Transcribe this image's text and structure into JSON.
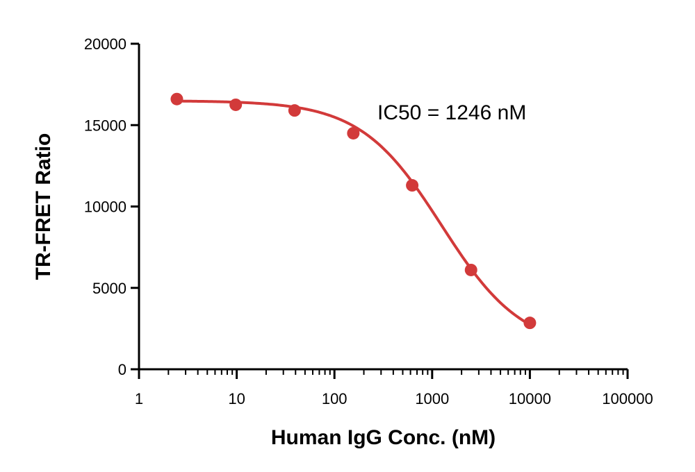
{
  "chart_data": {
    "type": "scatter",
    "title": "",
    "xlabel": "Human IgG Conc. (nM)",
    "ylabel": "TR-FRET Ratio",
    "x_scale": "log",
    "xlim": [
      1,
      100000
    ],
    "ylim": [
      0,
      20000
    ],
    "x_ticks": [
      1,
      10,
      100,
      1000,
      10000,
      100000
    ],
    "x_tick_labels": [
      "1",
      "10",
      "100",
      "1000",
      "10000",
      "100000"
    ],
    "y_ticks": [
      0,
      5000,
      10000,
      15000,
      20000
    ],
    "y_tick_labels": [
      "0",
      "5000",
      "10000",
      "15000",
      "20000"
    ],
    "grid": false,
    "series": [
      {
        "x": [
          2.44,
          9.77,
          39.1,
          156,
          625,
          2500,
          10000
        ],
        "y": [
          16600,
          16250,
          15900,
          14500,
          11300,
          6100,
          2850
        ]
      }
    ],
    "fit": {
      "model": "4PL",
      "top": 16500,
      "bottom": 1200,
      "ic50": 1246,
      "hill": 1.05
    },
    "annotations": [
      {
        "text": "IC50 = 1246 nM"
      }
    ],
    "colors": {
      "series": "#d23a3a",
      "axis": "#000000"
    }
  }
}
